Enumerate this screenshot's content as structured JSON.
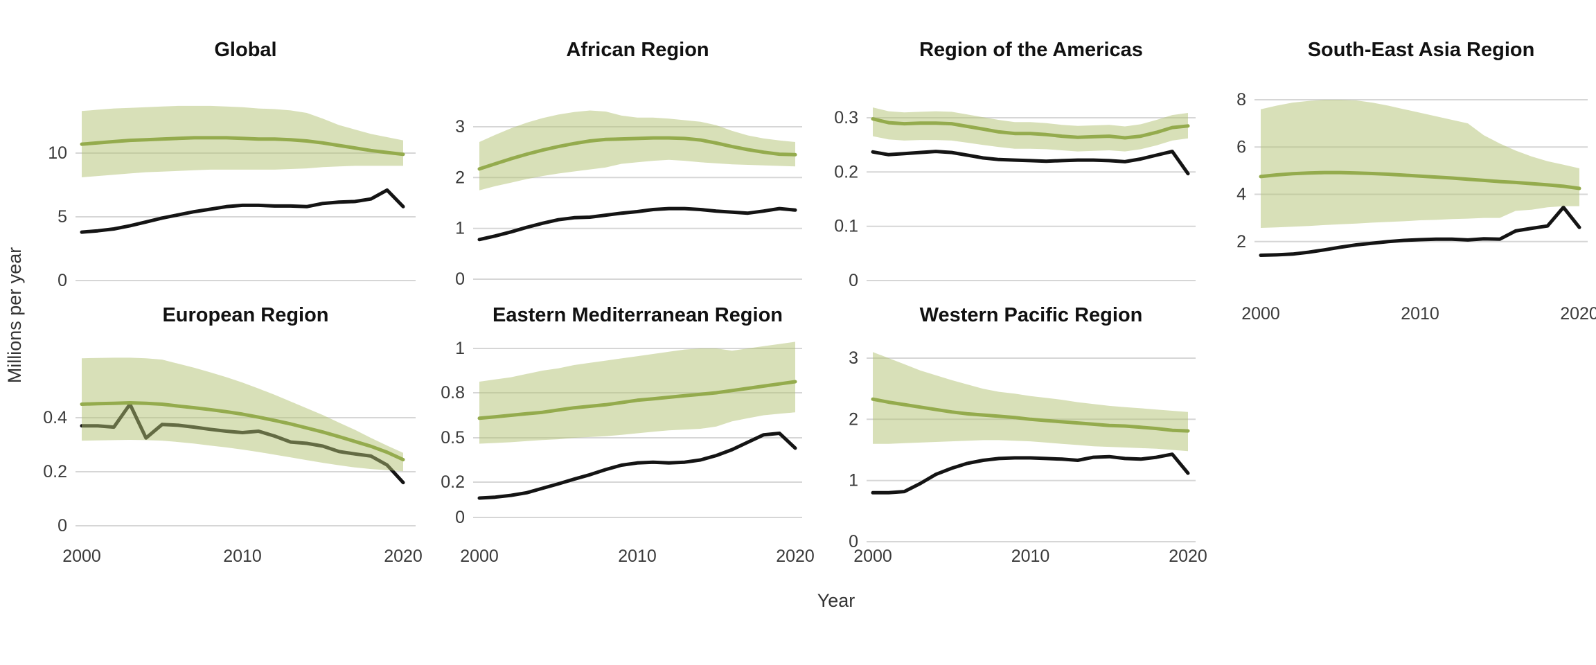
{
  "figure": {
    "ylabel": "Millions per year",
    "xlabel": "Year",
    "colors": {
      "median_line": "#94AB4D",
      "band_fill": "#B1C171",
      "band_opacity": 0.5,
      "estimate_line": "#141414",
      "gridline": "#d6d6d6",
      "title_text": "#111111",
      "tick_text": "#3a3a3a"
    }
  },
  "chart_data": {
    "type": "line",
    "x_axis": {
      "label": "Year",
      "years": [
        2000,
        2001,
        2002,
        2003,
        2004,
        2005,
        2006,
        2007,
        2008,
        2009,
        2010,
        2011,
        2012,
        2013,
        2014,
        2015,
        2016,
        2017,
        2018,
        2019,
        2020
      ],
      "ticks": [
        2000,
        2010,
        2020
      ],
      "tick_labels": [
        "2000",
        "2010",
        "2020"
      ]
    },
    "y_axis_label": "Millions per year",
    "panels": [
      {
        "key": "global",
        "title": "Global",
        "yticks": {
          "values": [
            0,
            5,
            10
          ],
          "labels": [
            "0",
            "5",
            "10"
          ]
        },
        "ylim": [
          0,
          14.2
        ],
        "show_xticks": false,
        "series": {
          "median": [
            10.7,
            10.8,
            10.9,
            11.0,
            11.05,
            11.1,
            11.15,
            11.2,
            11.2,
            11.2,
            11.15,
            11.1,
            11.1,
            11.05,
            10.95,
            10.8,
            10.6,
            10.4,
            10.2,
            10.05,
            9.9
          ],
          "upper": [
            13.3,
            13.4,
            13.5,
            13.55,
            13.6,
            13.65,
            13.7,
            13.7,
            13.7,
            13.65,
            13.6,
            13.5,
            13.45,
            13.35,
            13.15,
            12.7,
            12.2,
            11.85,
            11.5,
            11.25,
            11.0
          ],
          "lower": [
            8.1,
            8.2,
            8.3,
            8.4,
            8.5,
            8.55,
            8.6,
            8.65,
            8.7,
            8.7,
            8.7,
            8.7,
            8.7,
            8.75,
            8.8,
            8.9,
            8.95,
            9.0,
            9.0,
            9.0,
            9.0
          ],
          "estimate": [
            3.8,
            3.9,
            4.05,
            4.3,
            4.6,
            4.9,
            5.15,
            5.4,
            5.6,
            5.8,
            5.9,
            5.9,
            5.85,
            5.85,
            5.8,
            6.05,
            6.15,
            6.2,
            6.4,
            7.1,
            5.8
          ]
        }
      },
      {
        "key": "african",
        "title": "African Region",
        "yticks": {
          "values": [
            0,
            1,
            2,
            3
          ],
          "labels": [
            "0",
            "1",
            "2",
            "3"
          ]
        },
        "ylim": [
          0,
          3.4
        ],
        "show_xticks": false,
        "series": {
          "median": [
            2.17,
            2.27,
            2.37,
            2.46,
            2.54,
            2.61,
            2.67,
            2.72,
            2.75,
            2.76,
            2.77,
            2.78,
            2.78,
            2.77,
            2.74,
            2.68,
            2.61,
            2.55,
            2.5,
            2.46,
            2.45
          ],
          "upper": [
            2.7,
            2.84,
            2.97,
            3.08,
            3.17,
            3.24,
            3.29,
            3.32,
            3.3,
            3.22,
            3.18,
            3.18,
            3.16,
            3.13,
            3.1,
            3.03,
            2.92,
            2.83,
            2.77,
            2.73,
            2.7
          ],
          "lower": [
            1.75,
            1.83,
            1.9,
            1.97,
            2.03,
            2.08,
            2.12,
            2.16,
            2.2,
            2.27,
            2.3,
            2.33,
            2.35,
            2.33,
            2.3,
            2.28,
            2.26,
            2.25,
            2.24,
            2.23,
            2.22
          ],
          "estimate": [
            0.78,
            0.85,
            0.93,
            1.02,
            1.1,
            1.17,
            1.21,
            1.22,
            1.26,
            1.3,
            1.33,
            1.37,
            1.39,
            1.39,
            1.37,
            1.34,
            1.32,
            1.3,
            1.34,
            1.39,
            1.36
          ]
        }
      },
      {
        "key": "americas",
        "title": "Region of the Americas",
        "yticks": {
          "values": [
            0,
            0.1,
            0.2,
            0.3
          ],
          "labels": [
            "0",
            "0.1",
            "0.2",
            "0.3"
          ]
        },
        "ylim": [
          0,
          0.33
        ],
        "show_xticks": false,
        "series": {
          "median": [
            0.298,
            0.291,
            0.289,
            0.29,
            0.29,
            0.289,
            0.284,
            0.279,
            0.274,
            0.271,
            0.271,
            0.269,
            0.266,
            0.264,
            0.265,
            0.266,
            0.263,
            0.266,
            0.273,
            0.282,
            0.285
          ],
          "upper": [
            0.319,
            0.312,
            0.31,
            0.311,
            0.312,
            0.311,
            0.306,
            0.301,
            0.296,
            0.292,
            0.292,
            0.29,
            0.287,
            0.285,
            0.286,
            0.287,
            0.284,
            0.288,
            0.296,
            0.305,
            0.309
          ],
          "lower": [
            0.266,
            0.26,
            0.258,
            0.259,
            0.259,
            0.258,
            0.254,
            0.25,
            0.246,
            0.243,
            0.243,
            0.242,
            0.24,
            0.238,
            0.239,
            0.24,
            0.238,
            0.242,
            0.249,
            0.258,
            0.262
          ],
          "estimate": [
            0.237,
            0.232,
            0.234,
            0.236,
            0.238,
            0.236,
            0.231,
            0.226,
            0.223,
            0.222,
            0.221,
            0.22,
            0.221,
            0.222,
            0.222,
            0.221,
            0.219,
            0.224,
            0.231,
            0.238,
            0.197
          ]
        }
      },
      {
        "key": "sea",
        "title": "South-East Asia Region",
        "yticks": {
          "values": [
            2,
            4,
            6,
            8
          ],
          "labels": [
            "2",
            "4",
            "6",
            "8"
          ]
        },
        "ylim": [
          0,
          8.2
        ],
        "show_xticks": true,
        "series": {
          "median": [
            4.75,
            4.82,
            4.87,
            4.9,
            4.92,
            4.92,
            4.9,
            4.88,
            4.85,
            4.81,
            4.77,
            4.73,
            4.69,
            4.64,
            4.59,
            4.54,
            4.5,
            4.45,
            4.4,
            4.34,
            4.25
          ],
          "upper": [
            7.6,
            7.75,
            7.88,
            7.95,
            8.0,
            8.0,
            7.97,
            7.88,
            7.75,
            7.6,
            7.45,
            7.3,
            7.15,
            7.0,
            6.5,
            6.15,
            5.85,
            5.6,
            5.4,
            5.25,
            5.1
          ],
          "lower": [
            2.58,
            2.6,
            2.63,
            2.66,
            2.7,
            2.73,
            2.76,
            2.8,
            2.83,
            2.86,
            2.9,
            2.92,
            2.95,
            2.97,
            3.0,
            3.0,
            3.3,
            3.35,
            3.45,
            3.5,
            3.5
          ],
          "estimate": [
            1.42,
            1.44,
            1.47,
            1.55,
            1.65,
            1.76,
            1.86,
            1.93,
            2.0,
            2.05,
            2.08,
            2.1,
            2.1,
            2.07,
            2.12,
            2.1,
            2.45,
            2.56,
            2.66,
            3.45,
            2.6
          ]
        }
      },
      {
        "key": "european",
        "title": "European Region",
        "yticks": {
          "values": [
            0,
            0.2,
            0.4
          ],
          "labels": [
            "0",
            "0.2",
            "0.4"
          ]
        },
        "ylim": [
          0,
          0.65
        ],
        "show_xticks": true,
        "series": {
          "median": [
            0.45,
            0.452,
            0.453,
            0.455,
            0.453,
            0.45,
            0.443,
            0.437,
            0.43,
            0.422,
            0.413,
            0.402,
            0.39,
            0.377,
            0.362,
            0.347,
            0.33,
            0.312,
            0.294,
            0.272,
            0.245
          ],
          "upper": [
            0.62,
            0.621,
            0.622,
            0.622,
            0.62,
            0.615,
            0.6,
            0.585,
            0.568,
            0.55,
            0.53,
            0.508,
            0.485,
            0.46,
            0.435,
            0.41,
            0.382,
            0.355,
            0.325,
            0.297,
            0.27
          ],
          "lower": [
            0.315,
            0.316,
            0.317,
            0.318,
            0.317,
            0.315,
            0.31,
            0.304,
            0.297,
            0.29,
            0.282,
            0.273,
            0.263,
            0.253,
            0.243,
            0.233,
            0.224,
            0.216,
            0.21,
            0.206,
            0.202
          ],
          "estimate": [
            0.37,
            0.37,
            0.365,
            0.45,
            0.325,
            0.375,
            0.372,
            0.365,
            0.357,
            0.35,
            0.345,
            0.35,
            0.332,
            0.31,
            0.305,
            0.295,
            0.275,
            0.266,
            0.258,
            0.225,
            0.16
          ]
        }
      },
      {
        "key": "emed",
        "title": "Eastern Mediterranean Region",
        "yticks": {
          "values": [
            0,
            0.2,
            0.5,
            0.8,
            1
          ],
          "labels": [
            "0",
            "0.2",
            "0.5",
            "0.8",
            "1"
          ]
        },
        "ylim": [
          0,
          1.05
        ],
        "show_xticks": true,
        "series": {
          "median": [
            0.63,
            0.64,
            0.65,
            0.66,
            0.67,
            0.685,
            0.7,
            0.71,
            0.72,
            0.735,
            0.75,
            0.76,
            0.77,
            0.78,
            0.79,
            0.8,
            0.81,
            0.82,
            0.83,
            0.84,
            0.85
          ],
          "upper": [
            0.85,
            0.86,
            0.87,
            0.885,
            0.9,
            0.91,
            0.925,
            0.935,
            0.945,
            0.955,
            0.965,
            0.975,
            0.985,
            0.995,
            1.0,
            1.0,
            0.99,
            1.0,
            1.01,
            1.02,
            1.03
          ],
          "lower": [
            0.46,
            0.465,
            0.47,
            0.478,
            0.485,
            0.49,
            0.5,
            0.505,
            0.51,
            0.52,
            0.53,
            0.54,
            0.55,
            0.555,
            0.56,
            0.575,
            0.61,
            0.63,
            0.65,
            0.66,
            0.67
          ],
          "estimate": [
            0.11,
            0.115,
            0.125,
            0.14,
            0.165,
            0.19,
            0.22,
            0.25,
            0.285,
            0.315,
            0.33,
            0.335,
            0.33,
            0.335,
            0.35,
            0.38,
            0.42,
            0.47,
            0.52,
            0.53,
            0.43
          ]
        }
      },
      {
        "key": "wpac",
        "title": "Western Pacific Region",
        "yticks": {
          "values": [
            0,
            1,
            2,
            3
          ],
          "labels": [
            "0",
            "1",
            "2",
            "3"
          ]
        },
        "ylim": [
          0,
          3.2
        ],
        "show_xticks": true,
        "series": {
          "median": [
            2.33,
            2.28,
            2.24,
            2.2,
            2.16,
            2.12,
            2.09,
            2.07,
            2.05,
            2.03,
            2.0,
            1.98,
            1.96,
            1.94,
            1.92,
            1.9,
            1.89,
            1.87,
            1.85,
            1.82,
            1.81
          ],
          "upper": [
            3.1,
            3.0,
            2.9,
            2.8,
            2.72,
            2.64,
            2.57,
            2.5,
            2.45,
            2.42,
            2.38,
            2.35,
            2.32,
            2.28,
            2.25,
            2.22,
            2.2,
            2.18,
            2.16,
            2.14,
            2.12
          ],
          "lower": [
            1.6,
            1.6,
            1.61,
            1.62,
            1.63,
            1.64,
            1.65,
            1.66,
            1.66,
            1.65,
            1.64,
            1.62,
            1.6,
            1.58,
            1.56,
            1.55,
            1.54,
            1.53,
            1.52,
            1.5,
            1.48
          ],
          "estimate": [
            0.8,
            0.8,
            0.82,
            0.95,
            1.1,
            1.2,
            1.28,
            1.33,
            1.36,
            1.37,
            1.37,
            1.36,
            1.35,
            1.33,
            1.38,
            1.39,
            1.36,
            1.35,
            1.38,
            1.43,
            1.12
          ]
        }
      }
    ]
  }
}
